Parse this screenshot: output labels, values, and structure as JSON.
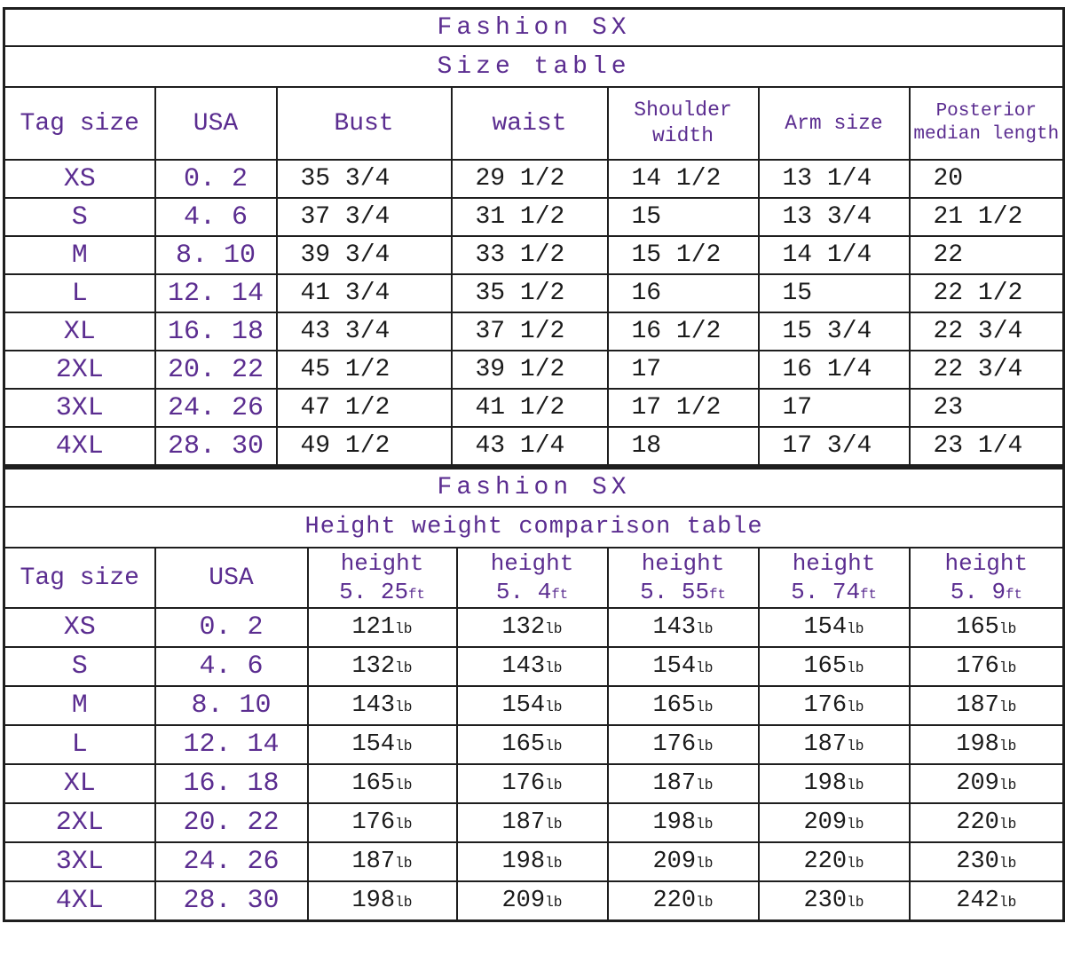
{
  "colors": {
    "purple": "#5b2d90",
    "ink": "#1b1b1b",
    "border": "#1e1e1e",
    "background": "#ffffff"
  },
  "size_table": {
    "title": "Fashion SX",
    "subtitle": "Size table",
    "headers": [
      {
        "lines": [
          "Tag size"
        ]
      },
      {
        "lines": [
          "USA"
        ]
      },
      {
        "lines": [
          "Bust"
        ]
      },
      {
        "lines": [
          "waist"
        ]
      },
      {
        "lines": [
          "Shoulder",
          "width"
        ]
      },
      {
        "lines": [
          "Arm size"
        ]
      },
      {
        "lines": [
          "Posterior",
          "median length"
        ]
      }
    ],
    "rows": [
      [
        "XS",
        "0. 2",
        "35 3/4",
        "29 1/2",
        "14 1/2",
        "13 1/4",
        "20"
      ],
      [
        "S",
        "4. 6",
        "37 3/4",
        "31 1/2",
        "15",
        "13 3/4",
        "21 1/2"
      ],
      [
        "M",
        "8. 10",
        "39 3/4",
        "33 1/2",
        "15 1/2",
        "14 1/4",
        "22"
      ],
      [
        "L",
        "12. 14",
        "41 3/4",
        "35 1/2",
        "16",
        "15",
        "22 1/2"
      ],
      [
        "XL",
        "16. 18",
        "43 3/4",
        "37 1/2",
        "16 1/2",
        "15 3/4",
        "22 3/4"
      ],
      [
        "2XL",
        "20. 22",
        "45 1/2",
        "39 1/2",
        "17",
        "16 1/4",
        "22 3/4"
      ],
      [
        "3XL",
        "24. 26",
        "47 1/2",
        "41 1/2",
        "17 1/2",
        "17",
        "23"
      ],
      [
        "4XL",
        "28. 30",
        "49 1/2",
        "43 1/4",
        "18",
        "17 3/4",
        "23 1/4"
      ]
    ]
  },
  "weight_table": {
    "title": "Fashion SX",
    "subtitle": "Height weight comparison table",
    "headers": [
      {
        "lines": [
          "Tag size"
        ]
      },
      {
        "lines": [
          "USA"
        ]
      },
      {
        "label": "height",
        "value": "5. 25",
        "unit": "ft"
      },
      {
        "label": "height",
        "value": "5. 4",
        "unit": "ft"
      },
      {
        "label": "height",
        "value": "5. 55",
        "unit": "ft"
      },
      {
        "label": "height",
        "value": "5. 74",
        "unit": "ft"
      },
      {
        "label": "height",
        "value": "5. 9",
        "unit": "ft"
      }
    ],
    "rows": [
      [
        "XS",
        "0. 2",
        {
          "v": "121",
          "u": "lb"
        },
        {
          "v": "132",
          "u": "lb"
        },
        {
          "v": "143",
          "u": "lb"
        },
        {
          "v": "154",
          "u": "lb"
        },
        {
          "v": "165",
          "u": "lb"
        }
      ],
      [
        "S",
        "4. 6",
        {
          "v": "132",
          "u": "lb"
        },
        {
          "v": "143",
          "u": "lb"
        },
        {
          "v": "154",
          "u": "lb"
        },
        {
          "v": "165",
          "u": "lb"
        },
        {
          "v": "176",
          "u": "lb"
        }
      ],
      [
        "M",
        "8. 10",
        {
          "v": "143",
          "u": "lb"
        },
        {
          "v": "154",
          "u": "lb"
        },
        {
          "v": "165",
          "u": "lb"
        },
        {
          "v": "176",
          "u": "lb"
        },
        {
          "v": "187",
          "u": "lb"
        }
      ],
      [
        "L",
        "12. 14",
        {
          "v": "154",
          "u": "lb"
        },
        {
          "v": "165",
          "u": "lb"
        },
        {
          "v": "176",
          "u": "lb"
        },
        {
          "v": "187",
          "u": "lb"
        },
        {
          "v": "198",
          "u": "lb"
        }
      ],
      [
        "XL",
        "16. 18",
        {
          "v": "165",
          "u": "lb"
        },
        {
          "v": "176",
          "u": "lb"
        },
        {
          "v": "187",
          "u": "lb"
        },
        {
          "v": "198",
          "u": "lb"
        },
        {
          "v": "209",
          "u": "lb"
        }
      ],
      [
        "2XL",
        "20. 22",
        {
          "v": "176",
          "u": "lb"
        },
        {
          "v": "187",
          "u": "lb"
        },
        {
          "v": "198",
          "u": "lb"
        },
        {
          "v": "209",
          "u": "lb"
        },
        {
          "v": "220",
          "u": "lb"
        }
      ],
      [
        "3XL",
        "24. 26",
        {
          "v": "187",
          "u": "lb"
        },
        {
          "v": "198",
          "u": "lb"
        },
        {
          "v": "209",
          "u": "lb"
        },
        {
          "v": "220",
          "u": "lb"
        },
        {
          "v": "230",
          "u": "lb"
        }
      ],
      [
        "4XL",
        "28. 30",
        {
          "v": "198",
          "u": "lb"
        },
        {
          "v": "209",
          "u": "lb"
        },
        {
          "v": "220",
          "u": "lb"
        },
        {
          "v": "230",
          "u": "lb"
        },
        {
          "v": "242",
          "u": "lb"
        }
      ]
    ]
  },
  "chart_data": [
    {
      "type": "table",
      "title": "Fashion SX",
      "subtitle": "Size table",
      "columns": [
        "Tag size",
        "USA",
        "Bust",
        "waist",
        "Shoulder width",
        "Arm size",
        "Posterior median length"
      ],
      "rows": [
        [
          "XS",
          "0.2",
          "35 3/4",
          "29 1/2",
          "14 1/2",
          "13 1/4",
          "20"
        ],
        [
          "S",
          "4.6",
          "37 3/4",
          "31 1/2",
          "15",
          "13 3/4",
          "21 1/2"
        ],
        [
          "M",
          "8.10",
          "39 3/4",
          "33 1/2",
          "15 1/2",
          "14 1/4",
          "22"
        ],
        [
          "L",
          "12.14",
          "41 3/4",
          "35 1/2",
          "16",
          "15",
          "22 1/2"
        ],
        [
          "XL",
          "16.18",
          "43 3/4",
          "37 1/2",
          "16 1/2",
          "15 3/4",
          "22 3/4"
        ],
        [
          "2XL",
          "20.22",
          "45 1/2",
          "39 1/2",
          "17",
          "16 1/4",
          "22 3/4"
        ],
        [
          "3XL",
          "24.26",
          "47 1/2",
          "41 1/2",
          "17 1/2",
          "17",
          "23"
        ],
        [
          "4XL",
          "28.30",
          "49 1/2",
          "43 1/4",
          "18",
          "17 3/4",
          "23 1/4"
        ]
      ]
    },
    {
      "type": "table",
      "title": "Fashion SX",
      "subtitle": "Height weight comparison table",
      "columns": [
        "Tag size",
        "USA",
        "height 5.25ft",
        "height 5.4ft",
        "height 5.55ft",
        "height 5.74ft",
        "height 5.9ft"
      ],
      "rows": [
        [
          "XS",
          "0.2",
          "121lb",
          "132lb",
          "143lb",
          "154lb",
          "165lb"
        ],
        [
          "S",
          "4.6",
          "132lb",
          "143lb",
          "154lb",
          "165lb",
          "176lb"
        ],
        [
          "M",
          "8.10",
          "143lb",
          "154lb",
          "165lb",
          "176lb",
          "187lb"
        ],
        [
          "L",
          "12.14",
          "154lb",
          "165lb",
          "176lb",
          "187lb",
          "198lb"
        ],
        [
          "XL",
          "16.18",
          "165lb",
          "176lb",
          "187lb",
          "198lb",
          "209lb"
        ],
        [
          "2XL",
          "20.22",
          "176lb",
          "187lb",
          "198lb",
          "209lb",
          "220lb"
        ],
        [
          "3XL",
          "24.26",
          "187lb",
          "198lb",
          "209lb",
          "220lb",
          "230lb"
        ],
        [
          "4XL",
          "28.30",
          "198lb",
          "209lb",
          "220lb",
          "230lb",
          "242lb"
        ]
      ]
    }
  ]
}
